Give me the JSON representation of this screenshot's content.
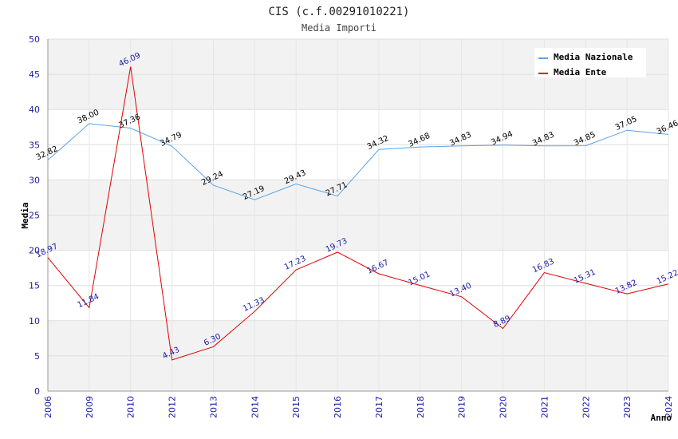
{
  "chart_data": {
    "type": "line",
    "title": "CIS (c.f.00291010221)",
    "subtitle": "Media Importi",
    "xlabel": "Anno",
    "ylabel": "Media",
    "ylim": [
      0,
      50
    ],
    "yticks": [
      "0",
      "5",
      "10",
      "15",
      "20",
      "25",
      "30",
      "35",
      "40",
      "45",
      "50"
    ],
    "categories": [
      "2006",
      "2009",
      "2010",
      "2012",
      "2013",
      "2014",
      "2015",
      "2016",
      "2017",
      "2018",
      "2019",
      "2020",
      "2021",
      "2022",
      "2023",
      "2024"
    ],
    "grid": true,
    "legend_position": "top-right",
    "series": [
      {
        "name": "Media Nazionale",
        "color": "#5aa3e8",
        "values": [
          32.82,
          38.0,
          37.36,
          34.79,
          29.24,
          27.19,
          29.43,
          27.71,
          34.32,
          34.68,
          34.83,
          34.94,
          34.83,
          34.85,
          37.05,
          36.46
        ],
        "labels": [
          "32.82",
          "38.00",
          "37.36",
          "34.79",
          "29.24",
          "27.19",
          "29.43",
          "27.71",
          "34.32",
          "34.68",
          "34.83",
          "34.94",
          "34.83",
          "34.85",
          "37.05",
          "36.46"
        ]
      },
      {
        "name": "Media Ente",
        "color": "#e00000",
        "values": [
          18.97,
          11.84,
          46.09,
          4.43,
          6.3,
          11.33,
          17.23,
          19.73,
          16.67,
          15.01,
          13.4,
          8.89,
          16.83,
          15.31,
          13.82,
          15.22
        ],
        "labels": [
          "18.97",
          "11.84",
          "46.09",
          "4.43",
          "6.30",
          "11.33",
          "17.23",
          "19.73",
          "16.67",
          "15.01",
          "13.40",
          "8.89",
          "16.83",
          "15.31",
          "13.82",
          "15.22"
        ]
      }
    ]
  }
}
